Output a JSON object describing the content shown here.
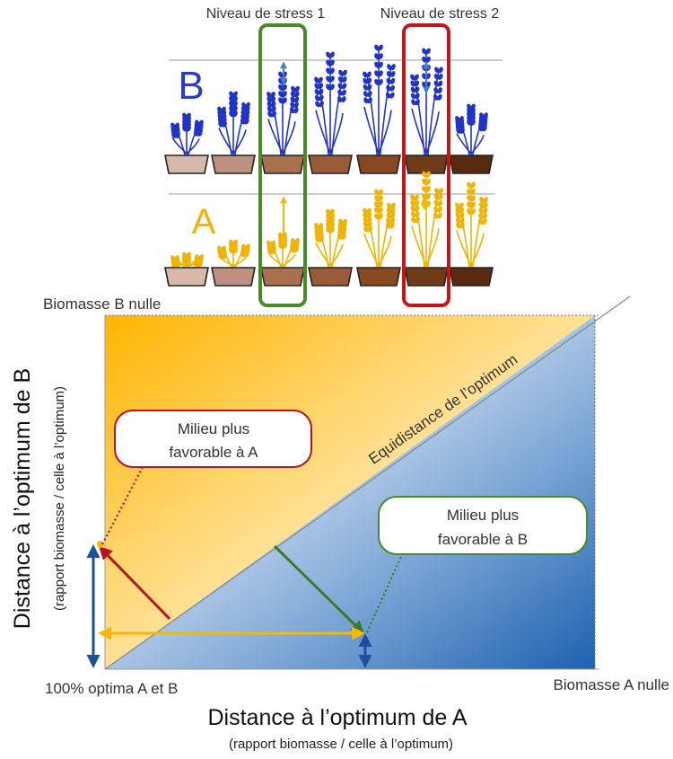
{
  "stress_labels": {
    "level1": "Niveau de stress 1",
    "level2": "Niveau de stress 2"
  },
  "species_labels": {
    "b": "B",
    "a": "A"
  },
  "corner_labels": {
    "top_left": "Biomasse B nulle",
    "bottom_left": "100% optima A et B",
    "bottom_right": "Biomasse A nulle"
  },
  "diagonal_label": "Equidistance de l’optimum",
  "callouts": {
    "favor_a": {
      "line1": "Milieu plus",
      "line2": "favorable à A"
    },
    "favor_b": {
      "line1": "Milieu plus",
      "line2": "favorable à B"
    }
  },
  "axes": {
    "x_title": "Distance à l’optimum de A",
    "x_subtitle": "(rapport biomasse / celle à l’optimum)",
    "y_title": "Distance à l’optimum de B",
    "y_subtitle": "(rapport biomasse / celle à l’optimum)"
  },
  "colors": {
    "species_b": "#2233c8",
    "species_a": "#f0b400",
    "stress1_box": "#4a8a2a",
    "stress2_box": "#c01818",
    "gradient_a": "#ffb800",
    "gradient_b": "#1f66b0",
    "arrow_blue": "#1f4e9a",
    "arrow_yellow": "#f5b800",
    "arrow_red": "#b8141e",
    "arrow_green": "#3c7a28"
  },
  "pot_colors": [
    "#d6b9a8",
    "#bf9080",
    "#a8704c",
    "#9a5c38",
    "#8a4820",
    "#6e3a18",
    "#5a2a10"
  ]
}
